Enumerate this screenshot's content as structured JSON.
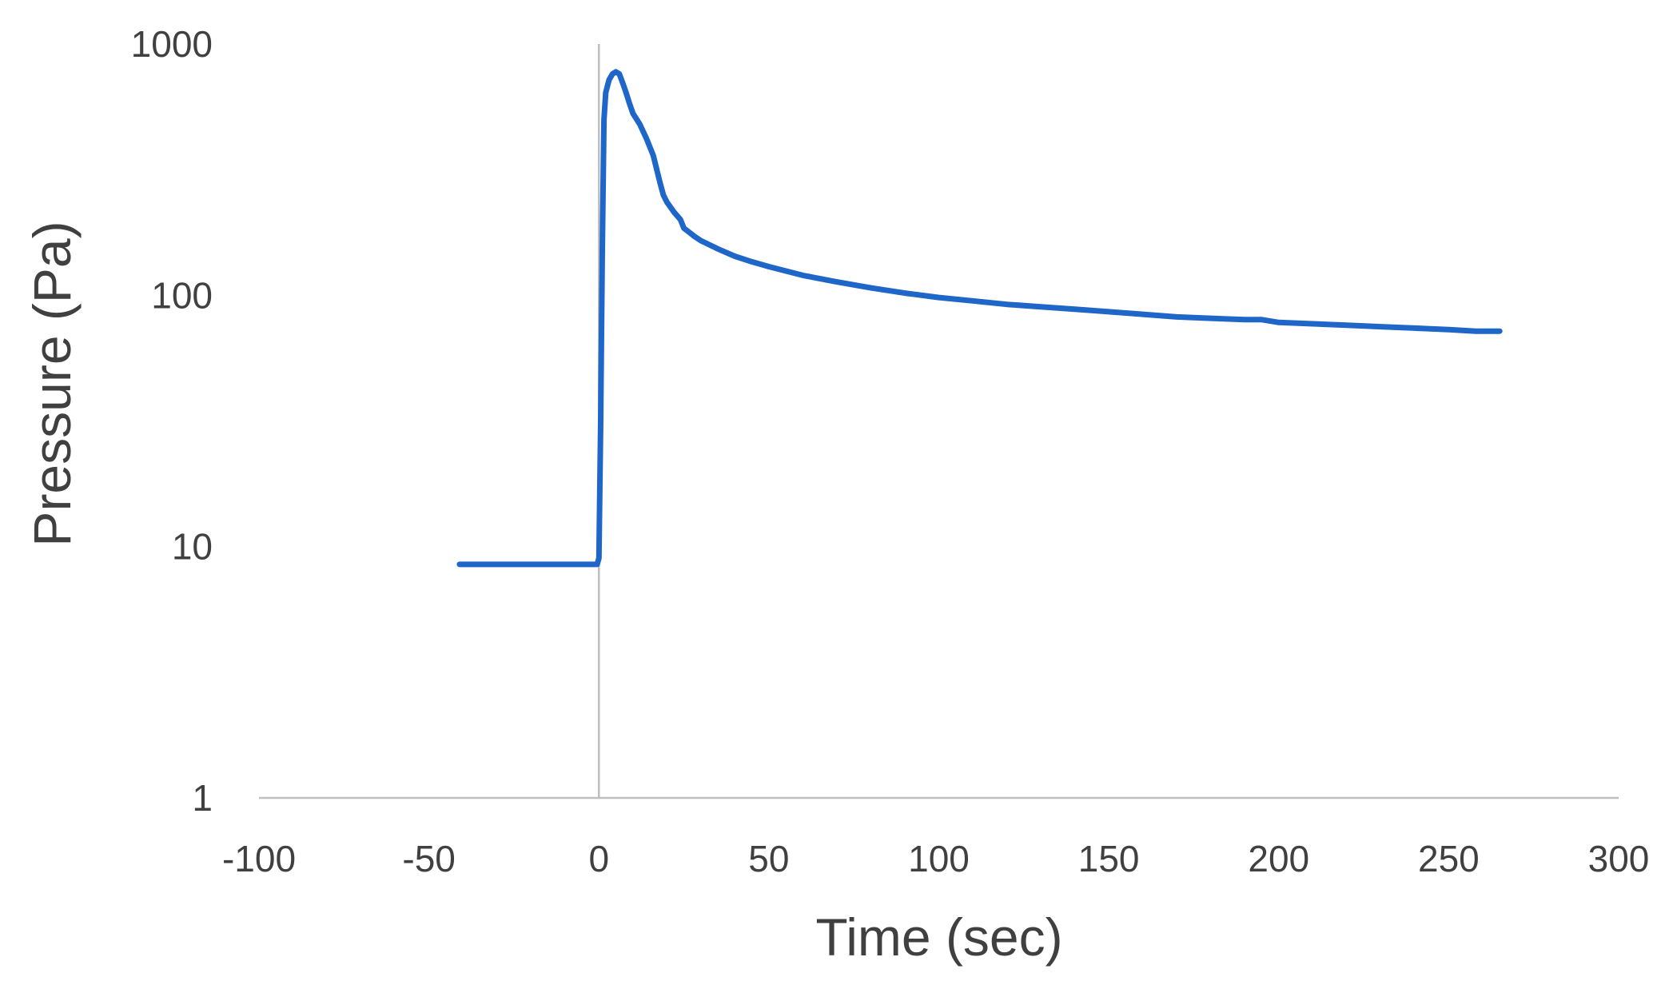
{
  "chart_data": {
    "type": "line",
    "title": "",
    "xlabel": "Time (sec)",
    "ylabel": "Pressure (Pa)",
    "x_axis": {
      "min": -100,
      "max": 300,
      "ticks": [
        -100,
        -50,
        0,
        50,
        100,
        150,
        200,
        250,
        300
      ],
      "tick_labels": [
        "-100",
        "-50",
        "0",
        "50",
        "100",
        "150",
        "200",
        "250",
        "300"
      ]
    },
    "y_axis": {
      "scale": "log",
      "min": 1,
      "max": 1000,
      "ticks": [
        1,
        10,
        100,
        1000
      ],
      "tick_labels": [
        "1",
        "10",
        "100",
        "1000"
      ]
    },
    "grid": false,
    "legend": "none",
    "series": [
      {
        "color": "#1f66c9",
        "points": [
          [
            -41,
            8.5
          ],
          [
            -20,
            8.5
          ],
          [
            -0.5,
            8.5
          ],
          [
            0,
            9
          ],
          [
            0.5,
            30
          ],
          [
            1,
            150
          ],
          [
            1.5,
            500
          ],
          [
            2,
            640
          ],
          [
            3,
            720
          ],
          [
            4,
            760
          ],
          [
            5,
            775
          ],
          [
            6,
            760
          ],
          [
            7,
            700
          ],
          [
            8,
            640
          ],
          [
            9,
            580
          ],
          [
            10,
            530
          ],
          [
            12,
            480
          ],
          [
            14,
            420
          ],
          [
            16,
            360
          ],
          [
            18,
            280
          ],
          [
            19,
            250
          ],
          [
            20,
            235
          ],
          [
            22,
            215
          ],
          [
            24,
            200
          ],
          [
            25,
            185
          ],
          [
            28,
            172
          ],
          [
            30,
            165
          ],
          [
            35,
            153
          ],
          [
            40,
            143
          ],
          [
            45,
            136
          ],
          [
            50,
            130
          ],
          [
            60,
            120
          ],
          [
            70,
            113
          ],
          [
            80,
            107
          ],
          [
            90,
            102
          ],
          [
            100,
            98
          ],
          [
            110,
            95
          ],
          [
            120,
            92
          ],
          [
            130,
            90
          ],
          [
            140,
            88
          ],
          [
            150,
            86
          ],
          [
            160,
            84
          ],
          [
            170,
            82
          ],
          [
            180,
            81
          ],
          [
            190,
            80
          ],
          [
            195,
            80
          ],
          [
            200,
            78
          ],
          [
            210,
            77
          ],
          [
            220,
            76
          ],
          [
            230,
            75
          ],
          [
            240,
            74
          ],
          [
            250,
            73
          ],
          [
            258,
            72
          ],
          [
            265,
            72
          ]
        ]
      }
    ]
  }
}
